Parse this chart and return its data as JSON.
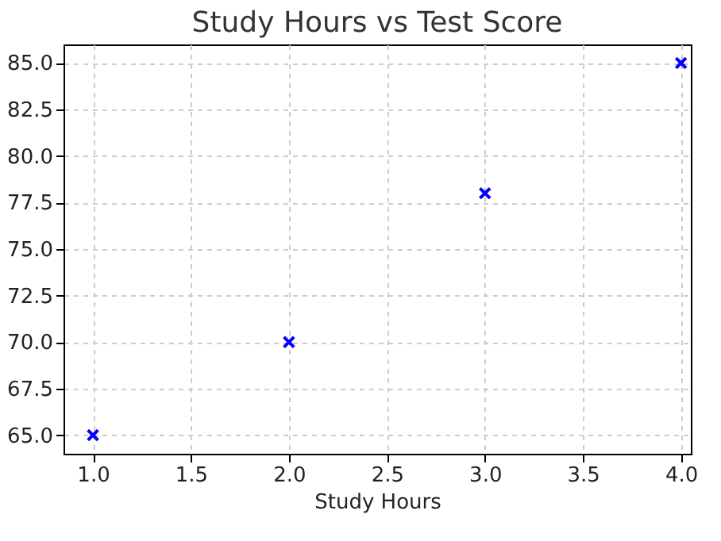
{
  "chart_data": {
    "type": "scatter",
    "title": "Study Hours vs Test Score",
    "xlabel": "Study Hours",
    "x": [
      1,
      2,
      3,
      4
    ],
    "series": [
      {
        "color": "#0000ff",
        "values": [
          65,
          70,
          78,
          85
        ]
      }
    ],
    "xlim": [
      0.85,
      4.05
    ],
    "xticks": [
      {
        "value": 1,
        "label": "1.0"
      },
      {
        "value": 1.5,
        "label": "1.5"
      },
      {
        "value": 2,
        "label": "2.0"
      },
      {
        "value": 2.5,
        "label": "2.5"
      },
      {
        "value": 3,
        "label": "3.0"
      },
      {
        "value": 3.5,
        "label": "3.5"
      },
      {
        "value": 4,
        "label": "4.0"
      }
    ],
    "ylim": [
      64,
      86
    ],
    "yticks": [
      {
        "value": 65,
        "label": "65.0"
      },
      {
        "value": 67.5,
        "label": "67.5"
      },
      {
        "value": 70,
        "label": "70.0"
      },
      {
        "value": 72.5,
        "label": "72.5"
      },
      {
        "value": 75,
        "label": "75.0"
      },
      {
        "value": 77.5,
        "label": "77.5"
      },
      {
        "value": 80,
        "label": "80.0"
      },
      {
        "value": 82.5,
        "label": "82.5"
      },
      {
        "value": 85,
        "label": "85.0"
      }
    ],
    "grid": true,
    "marker": "cross"
  }
}
